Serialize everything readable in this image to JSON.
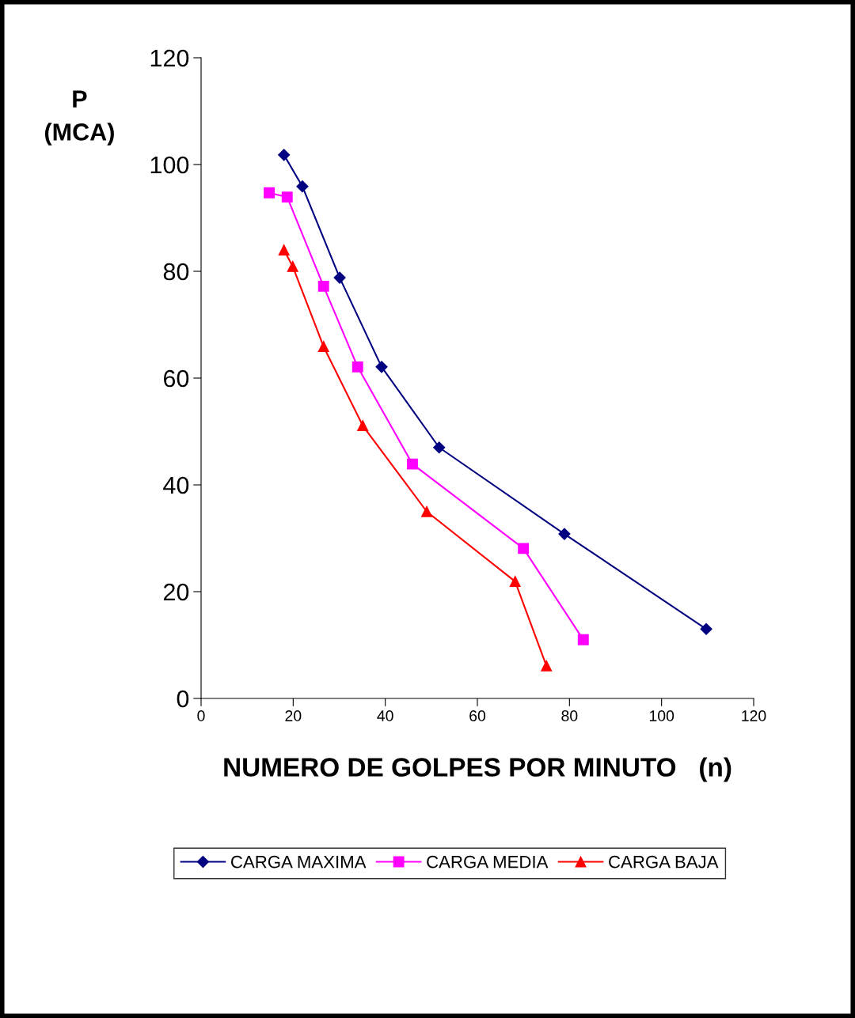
{
  "chart_data": {
    "type": "line",
    "xlabel": "NUMERO DE GOLPES POR MINUTO   (n)",
    "ylabel": "P\n(MCA)",
    "xlim": [
      0,
      120
    ],
    "xticks": [
      0,
      20,
      40,
      60,
      80,
      100,
      120
    ],
    "ylim": [
      0,
      120
    ],
    "yticks": [
      0,
      20,
      40,
      60,
      80,
      100,
      120
    ],
    "grid": false,
    "legend": "bottom",
    "line_style": "solid",
    "series": [
      {
        "name": "CARGA MAXIMA",
        "color": "#000080",
        "marker": "diamond",
        "x": [
          18.0,
          22.0,
          30.1,
          39.2,
          51.7,
          78.9,
          109.7
        ],
        "values": [
          101.8,
          95.9,
          78.8,
          62.1,
          47.0,
          30.8,
          13.0
        ]
      },
      {
        "name": "CARGA MEDIA",
        "color": "#ff00ff",
        "marker": "square",
        "x": [
          14.8,
          18.7,
          26.6,
          34.0,
          45.9,
          70.0,
          83.0
        ],
        "values": [
          94.7,
          93.9,
          77.2,
          62.1,
          43.9,
          28.1,
          11.0
        ]
      },
      {
        "name": "CARGA BAJA",
        "color": "#ff0000",
        "marker": "triangle",
        "x": [
          18.0,
          19.9,
          26.6,
          35.1,
          49.0,
          68.2,
          75.0
        ],
        "values": [
          84.0,
          80.9,
          65.9,
          51.1,
          35.0,
          21.9,
          6.1
        ]
      }
    ]
  }
}
